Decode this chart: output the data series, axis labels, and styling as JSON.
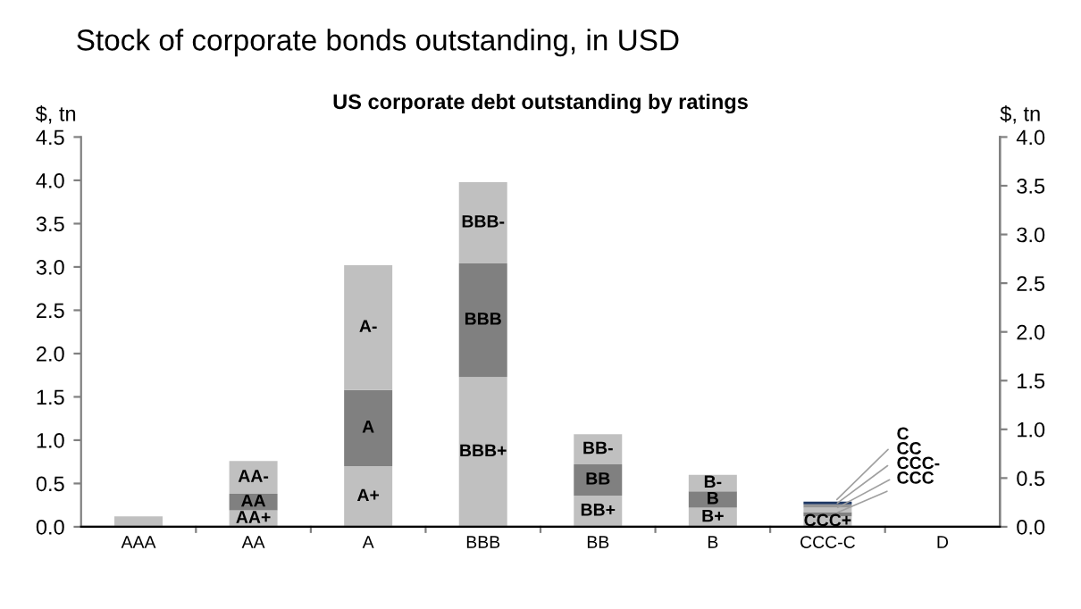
{
  "chart_data": {
    "type": "bar",
    "stacked": true,
    "title": "Stock of corporate bonds outstanding, in USD",
    "subtitle": "US corporate debt outstanding by ratings",
    "ylabel": "$, tn",
    "y2label": "$, tn",
    "categories": [
      "AAA",
      "AA",
      "A",
      "BBB",
      "BB",
      "B",
      "CCC-C",
      "D"
    ],
    "series": [
      {
        "color": "#c0c0c0",
        "values": [
          0.12,
          0.19,
          0.7,
          1.73,
          0.36,
          0.22,
          0.12,
          0.01
        ],
        "value_labels": [
          null,
          "AA+",
          "A+",
          "BBB+",
          "BB+",
          "B+",
          "CCC+",
          null
        ]
      },
      {
        "color": "#808080",
        "values": [
          null,
          0.19,
          0.88,
          1.31,
          0.36,
          0.19,
          0.05,
          null
        ],
        "value_labels": [
          null,
          "AA",
          "A",
          "BBB",
          "BB",
          "B",
          "CCC",
          null
        ]
      },
      {
        "color": "#c0c0c0",
        "values": [
          null,
          0.38,
          1.44,
          0.94,
          0.35,
          0.19,
          0.05,
          null
        ],
        "value_labels": [
          null,
          "AA-",
          "A-",
          "BBB-",
          "BB-",
          "B-",
          "CCC-",
          null
        ]
      },
      {
        "color": "#969696",
        "values": [
          null,
          null,
          null,
          null,
          null,
          null,
          0.04,
          null
        ],
        "value_labels": [
          null,
          null,
          null,
          null,
          null,
          null,
          "CC",
          null
        ]
      },
      {
        "color": "#1f3864",
        "values": [
          null,
          null,
          null,
          null,
          null,
          null,
          0.03,
          null
        ],
        "value_labels": [
          null,
          null,
          null,
          null,
          null,
          null,
          "C",
          null
        ]
      }
    ],
    "ylim": [
      0,
      4.5
    ],
    "yticks": [
      {
        "value": 0,
        "label": "0.0"
      },
      0.5,
      {
        "value": 1,
        "label": "1.0"
      },
      1.5,
      {
        "value": 2,
        "label": "2.0"
      },
      2.5,
      {
        "value": 3,
        "label": "3.0"
      },
      3.5,
      {
        "value": 4,
        "label": "4.0"
      },
      4.5
    ],
    "y2lim": [
      0,
      4.0
    ],
    "y2ticks": [
      {
        "value": 0,
        "label": "0.0"
      },
      0.5,
      {
        "value": 1,
        "label": "1.0"
      },
      1.5,
      {
        "value": 2,
        "label": "2.0"
      },
      2.5,
      {
        "value": 3,
        "label": "3.0"
      },
      3.5,
      {
        "value": 4,
        "label": "4.0"
      }
    ],
    "legend": false,
    "grid": false
  }
}
